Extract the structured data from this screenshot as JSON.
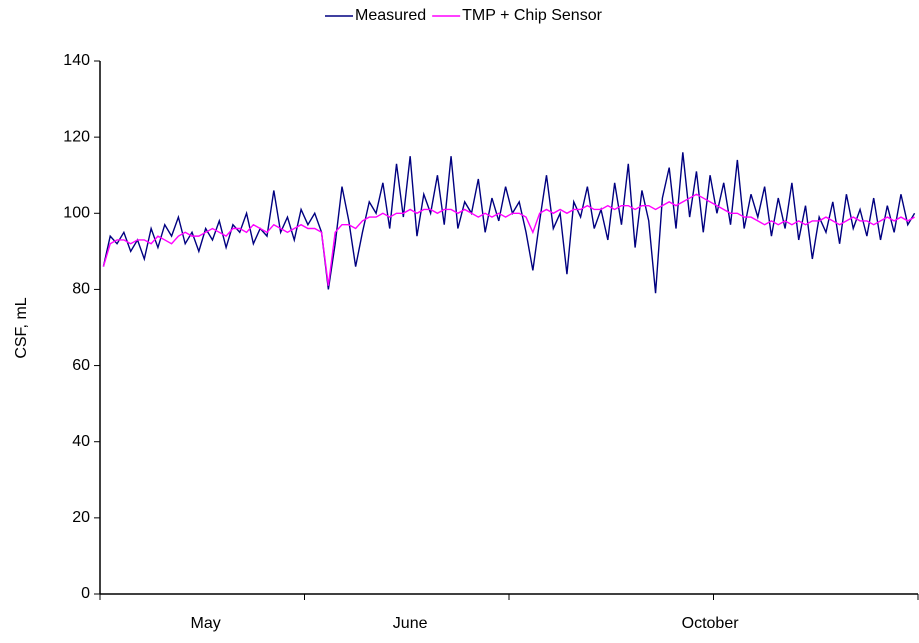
{
  "chart_data": {
    "type": "line",
    "y_label": "CSF, mL",
    "categories": [
      null,
      null,
      null,
      null,
      null,
      null,
      null,
      null,
      null,
      null,
      null,
      null,
      null,
      null,
      null,
      "May",
      null,
      null,
      null,
      null,
      null,
      null,
      null,
      null,
      null,
      null,
      null,
      null,
      null,
      null,
      null,
      null,
      null,
      null,
      null,
      null,
      null,
      null,
      null,
      null,
      null,
      null,
      null,
      null,
      null,
      "June",
      null,
      null,
      null,
      null,
      null,
      null,
      null,
      null,
      null,
      null,
      null,
      null,
      null,
      null,
      null,
      null,
      null,
      null,
      null,
      null,
      null,
      null,
      null,
      null,
      null,
      null,
      null,
      null,
      null,
      null,
      null,
      null,
      null,
      null,
      null,
      null,
      null,
      null,
      null,
      null,
      null,
      null,
      null,
      "October",
      null,
      null,
      null,
      null,
      null,
      null,
      null,
      null,
      null,
      null,
      null,
      null,
      null,
      null,
      null,
      null,
      null,
      null,
      null,
      null,
      null,
      null,
      null,
      null,
      null,
      null,
      null,
      null,
      null,
      null
    ],
    "series": [
      {
        "name": "Measured",
        "color": "#000080",
        "values": [
          86,
          94,
          92,
          95,
          90,
          93,
          88,
          96,
          91,
          97,
          94,
          99,
          92,
          95,
          90,
          96,
          93,
          98,
          91,
          97,
          95,
          100,
          92,
          96,
          94,
          106,
          95,
          99,
          93,
          101,
          97,
          100,
          95,
          80,
          92,
          107,
          98,
          86,
          95,
          103,
          100,
          108,
          96,
          113,
          99,
          115,
          94,
          105,
          100,
          110,
          97,
          115,
          96,
          103,
          100,
          109,
          95,
          104,
          98,
          107,
          100,
          103,
          95,
          85,
          98,
          110,
          96,
          100,
          84,
          103,
          99,
          107,
          96,
          101,
          93,
          108,
          97,
          113,
          91,
          106,
          98,
          79,
          104,
          112,
          96,
          116,
          99,
          111,
          95,
          110,
          100,
          108,
          97,
          114,
          96,
          105,
          99,
          107,
          94,
          104,
          96,
          108,
          93,
          102,
          88,
          99,
          95,
          103,
          92,
          105,
          96,
          101,
          94,
          104,
          93,
          102,
          95,
          105,
          97,
          100
        ]
      },
      {
        "name": "TMP + Chip Sensor",
        "color": "#ff00ff",
        "values": [
          86,
          92,
          93,
          93,
          92,
          93,
          93,
          92,
          94,
          93,
          92,
          94,
          95,
          94,
          94,
          95,
          96,
          95,
          94,
          96,
          96,
          95,
          97,
          96,
          95,
          97,
          96,
          95,
          96,
          97,
          96,
          96,
          95,
          81,
          95,
          97,
          97,
          96,
          98,
          99,
          99,
          100,
          99,
          100,
          100,
          101,
          100,
          101,
          101,
          100,
          101,
          101,
          100,
          101,
          100,
          99,
          100,
          99,
          100,
          99,
          100,
          100,
          99,
          95,
          100,
          101,
          100,
          101,
          100,
          101,
          101,
          102,
          101,
          101,
          102,
          101,
          102,
          102,
          101,
          102,
          102,
          101,
          102,
          103,
          102,
          103,
          104,
          105,
          104,
          103,
          102,
          101,
          100,
          100,
          99,
          99,
          98,
          97,
          98,
          97,
          98,
          97,
          98,
          97,
          98,
          98,
          99,
          98,
          97,
          98,
          99,
          98,
          98,
          97,
          98,
          99,
          98,
          99,
          98,
          99
        ]
      }
    ],
    "ylim": [
      0,
      140
    ],
    "yticks": [
      0,
      20,
      40,
      60,
      80,
      100,
      120,
      140
    ],
    "grid": false,
    "legend": "top"
  }
}
